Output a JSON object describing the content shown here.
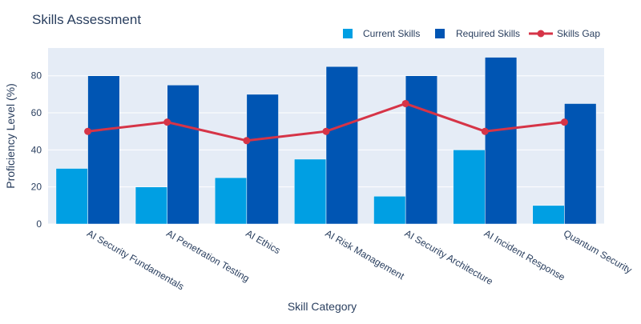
{
  "colors": {
    "plot_bg": "#e5ecf6",
    "grid": "#ffffff",
    "text": "#2a3f5f",
    "current": "#009fe3",
    "required": "#0055b3",
    "gap": "#d63447"
  },
  "chart_data": {
    "type": "bar",
    "title": "Skills Assessment",
    "xlabel": "Skill Category",
    "ylabel": "Proficiency Level (%)",
    "ylim": [
      0,
      95
    ],
    "yticks": [
      0,
      20,
      40,
      60,
      80
    ],
    "grid": true,
    "legend_position": "top-right",
    "categories": [
      "AI Security Fundamentals",
      "AI Penetration Testing",
      "AI Ethics",
      "AI Risk Management",
      "AI Security Architecture",
      "AI Incident Response",
      "Quantum Security"
    ],
    "series": [
      {
        "name": "Current Skills",
        "kind": "bar",
        "color": "#009fe3",
        "values": [
          30,
          20,
          25,
          35,
          15,
          40,
          10
        ]
      },
      {
        "name": "Required Skills",
        "kind": "bar",
        "color": "#0055b3",
        "values": [
          80,
          75,
          70,
          85,
          80,
          90,
          65
        ]
      },
      {
        "name": "Skills Gap",
        "kind": "line",
        "color": "#d63447",
        "values": [
          50,
          55,
          45,
          50,
          65,
          50,
          55
        ]
      }
    ]
  }
}
